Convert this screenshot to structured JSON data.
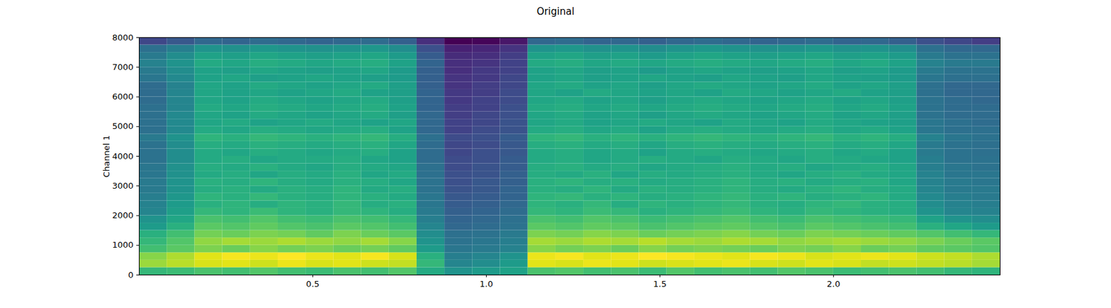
{
  "chart_data": {
    "type": "heatmap",
    "title": "Original",
    "y_label": "Channel 1",
    "xlim": [
      0,
      2.48
    ],
    "ylim": [
      0,
      8000
    ],
    "xticks": [
      0.5,
      {
        "value": 1,
        "label": "1.0"
      },
      1.5,
      {
        "value": 2,
        "label": "2.0"
      }
    ],
    "yticks": [
      0,
      1000,
      2000,
      3000,
      4000,
      5000,
      6000,
      7000,
      8000
    ],
    "x_bins": [
      0,
      0.08,
      0.16,
      0.24,
      0.32,
      0.4,
      0.48,
      0.56,
      0.64,
      0.72,
      0.8,
      0.88,
      0.96,
      1.04,
      1.12,
      1.2,
      1.28,
      1.36,
      1.44,
      1.52,
      1.6,
      1.68,
      1.76,
      1.84,
      1.92,
      2,
      2.08,
      2.16,
      2.24,
      2.32,
      2.4,
      2.48
    ],
    "y_bins": [
      0,
      250,
      500,
      750,
      1000,
      1250,
      1500,
      1750,
      2000,
      2250,
      2500,
      2750,
      3000,
      3250,
      3500,
      3750,
      4000,
      4250,
      4500,
      4750,
      5000,
      5250,
      5500,
      5750,
      6000,
      6250,
      6500,
      6750,
      7000,
      7250,
      7500,
      7750,
      8000
    ],
    "cells": [
      [
        -40,
        -39,
        -37,
        -38,
        -36,
        -38,
        -39,
        -37,
        -38,
        -36,
        -44,
        -50,
        -48,
        -46,
        -37,
        -36,
        -38,
        -37,
        -39,
        -36,
        -38,
        -37,
        -38,
        -36,
        -37,
        -39,
        -38,
        -37,
        -38,
        -40,
        -41
      ],
      [
        -28,
        -25,
        -22,
        -21,
        -23,
        -20,
        -22,
        -21,
        -23,
        -24,
        -40,
        -54,
        -52,
        -48,
        -21,
        -22,
        -20,
        -21,
        -23,
        -22,
        -21,
        -20,
        -22,
        -23,
        -21,
        -22,
        -24,
        -23,
        -24,
        -25,
        -27
      ],
      [
        -30,
        -26,
        -21,
        -19,
        -20,
        -18,
        -20,
        -21,
        -19,
        -22,
        -42,
        -56,
        -54,
        -50,
        -20,
        -19,
        -21,
        -20,
        -18,
        -19,
        -20,
        -21,
        -19,
        -20,
        -22,
        -21,
        -20,
        -21,
        -23,
        -24,
        -26
      ],
      [
        -38,
        -35,
        -31,
        -33,
        -30,
        -32,
        -31,
        -33,
        -32,
        -34,
        -48,
        -58,
        -57,
        -55,
        -30,
        -32,
        -31,
        -33,
        -30,
        -32,
        -31,
        -32,
        -33,
        -31,
        -32,
        -30,
        -33,
        -32,
        -34,
        -35,
        -36
      ],
      [
        -40,
        -36,
        -29,
        -27,
        -28,
        -26,
        -28,
        -29,
        -27,
        -30,
        -50,
        -59,
        -58,
        -56,
        -27,
        -28,
        -26,
        -27,
        -25,
        -27,
        -28,
        -26,
        -27,
        -29,
        -28,
        -27,
        -28,
        -29,
        -31,
        -33,
        -35
      ],
      [
        -42,
        -38,
        -32,
        -33,
        -31,
        -32,
        -34,
        -31,
        -33,
        -35,
        -52,
        -60,
        -59,
        -57,
        -31,
        -32,
        -30,
        -31,
        -33,
        -32,
        -31,
        -30,
        -32,
        -33,
        -31,
        -32,
        -33,
        -34,
        -36,
        -38,
        -40
      ],
      [
        -48,
        -42,
        -35,
        -36,
        -34,
        -36,
        -37,
        -35,
        -36,
        -38,
        -54,
        -62,
        -61,
        -59,
        -35,
        -36,
        -34,
        -35,
        -37,
        -36,
        -35,
        -34,
        -36,
        -37,
        -35,
        -36,
        -37,
        -38,
        -42,
        -45,
        -48
      ],
      [
        -50,
        -45,
        -37,
        -38,
        -36,
        -38,
        -39,
        -37,
        -38,
        -40,
        -56,
        -63,
        -62,
        -60,
        -37,
        -38,
        -36,
        -37,
        -39,
        -38,
        -37,
        -36,
        -38,
        -39,
        -37,
        -38,
        -39,
        -40,
        -46,
        -50,
        -52
      ],
      [
        -54,
        -47,
        -40,
        -41,
        -39,
        -41,
        -42,
        -40,
        -41,
        -43,
        -57,
        -64,
        -63,
        -61,
        -40,
        -41,
        -39,
        -40,
        -42,
        -41,
        -40,
        -39,
        -41,
        -42,
        -40,
        -41,
        -42,
        -43,
        -50,
        -54,
        -55
      ],
      [
        -55,
        -48,
        -42,
        -41,
        -43,
        -41,
        -42,
        -40,
        -43,
        -42,
        -58,
        -65,
        -64,
        -62,
        -41,
        -42,
        -40,
        -43,
        -41,
        -42,
        -41,
        -40,
        -42,
        -43,
        -41,
        -40,
        -42,
        -43,
        -52,
        -55,
        -56
      ],
      [
        -56,
        -49,
        -41,
        -42,
        -40,
        -42,
        -43,
        -41,
        -42,
        -44,
        -58,
        -66,
        -65,
        -63,
        -41,
        -40,
        -42,
        -41,
        -43,
        -42,
        -41,
        -40,
        -42,
        -41,
        -43,
        -42,
        -41,
        -44,
        -53,
        -56,
        -57
      ],
      [
        -57,
        -50,
        -43,
        -42,
        -44,
        -42,
        -43,
        -41,
        -44,
        -43,
        -59,
        -67,
        -66,
        -63,
        -42,
        -43,
        -41,
        -44,
        -42,
        -43,
        -42,
        -41,
        -43,
        -44,
        -42,
        -41,
        -43,
        -44,
        -54,
        -57,
        -57
      ],
      [
        -57,
        -50,
        -42,
        -43,
        -41,
        -43,
        -44,
        -42,
        -43,
        -45,
        -59,
        -68,
        -66,
        -64,
        -42,
        -41,
        -43,
        -42,
        -44,
        -43,
        -42,
        -41,
        -43,
        -42,
        -44,
        -43,
        -42,
        -45,
        -55,
        -57,
        -58
      ],
      [
        -58,
        -51,
        -44,
        -43,
        -45,
        -43,
        -44,
        -42,
        -45,
        -44,
        -60,
        -68,
        -67,
        -64,
        -43,
        -44,
        -42,
        -45,
        -43,
        -44,
        -43,
        -42,
        -44,
        -45,
        -43,
        -42,
        -44,
        -45,
        -55,
        -58,
        -58
      ],
      [
        -58,
        -51,
        -43,
        -44,
        -42,
        -44,
        -45,
        -43,
        -44,
        -45,
        -60,
        -69,
        -67,
        -65,
        -43,
        -42,
        -44,
        -43,
        -45,
        -44,
        -43,
        -42,
        -44,
        -43,
        -45,
        -44,
        -43,
        -45,
        -56,
        -58,
        -59
      ],
      [
        -59,
        -52,
        -44,
        -43,
        -45,
        -44,
        -44,
        -43,
        -45,
        -46,
        -61,
        -69,
        -68,
        -65,
        -44,
        -43,
        -45,
        -44,
        -43,
        -44,
        -45,
        -43,
        -44,
        -45,
        -43,
        -44,
        -45,
        -46,
        -56,
        -59,
        -59
      ],
      [
        -59,
        -52,
        -44,
        -45,
        -43,
        -44,
        -45,
        -44,
        -43,
        -46,
        -61,
        -70,
        -68,
        -66,
        -44,
        -43,
        -45,
        -44,
        -46,
        -44,
        -43,
        -44,
        -45,
        -44,
        -43,
        -45,
        -44,
        -46,
        -57,
        -59,
        -60
      ],
      [
        -59,
        -52,
        -43,
        -44,
        -42,
        -43,
        -44,
        -43,
        -42,
        -45,
        -61,
        -70,
        -69,
        -66,
        -43,
        -42,
        -44,
        -43,
        -45,
        -43,
        -42,
        -43,
        -44,
        -43,
        -42,
        -44,
        -43,
        -45,
        -57,
        -59,
        -60
      ],
      [
        -57,
        -50,
        -41,
        -42,
        -40,
        -41,
        -42,
        -41,
        -40,
        -43,
        -60,
        -69,
        -68,
        -65,
        -41,
        -40,
        -42,
        -41,
        -42,
        -41,
        -40,
        -41,
        -42,
        -41,
        -40,
        -42,
        -41,
        -43,
        -55,
        -58,
        -59
      ],
      [
        -60,
        -53,
        -44,
        -45,
        -43,
        -44,
        -45,
        -44,
        -43,
        -46,
        -62,
        -71,
        -69,
        -67,
        -44,
        -43,
        -45,
        -44,
        -46,
        -44,
        -43,
        -44,
        -45,
        -44,
        -43,
        -45,
        -44,
        -46,
        -58,
        -60,
        -60
      ],
      [
        -60,
        -53,
        -45,
        -44,
        -46,
        -45,
        -44,
        -45,
        -46,
        -45,
        -62,
        -71,
        -70,
        -67,
        -45,
        -44,
        -46,
        -45,
        -44,
        -45,
        -46,
        -44,
        -45,
        -46,
        -44,
        -45,
        -46,
        -47,
        -58,
        -60,
        -61
      ],
      [
        -60,
        -53,
        -45,
        -46,
        -44,
        -45,
        -46,
        -45,
        -44,
        -47,
        -62,
        -72,
        -70,
        -68,
        -45,
        -44,
        -46,
        -45,
        -47,
        -45,
        -44,
        -45,
        -46,
        -45,
        -44,
        -46,
        -45,
        -47,
        -59,
        -61,
        -61
      ],
      [
        -60,
        -54,
        -44,
        -45,
        -43,
        -44,
        -45,
        -44,
        -43,
        -46,
        -63,
        -72,
        -71,
        -68,
        -44,
        -43,
        -45,
        -44,
        -45,
        -44,
        -43,
        -44,
        -45,
        -44,
        -43,
        -45,
        -44,
        -46,
        -59,
        -61,
        -61
      ],
      [
        -61,
        -54,
        -45,
        -46,
        -44,
        -45,
        -46,
        -45,
        -44,
        -47,
        -63,
        -73,
        -71,
        -69,
        -45,
        -44,
        -46,
        -45,
        -47,
        -45,
        -44,
        -45,
        -46,
        -45,
        -44,
        -46,
        -45,
        -47,
        -59,
        -61,
        -62
      ],
      [
        -61,
        -54,
        -45,
        -46,
        -45,
        -46,
        -45,
        -44,
        -46,
        -47,
        -63,
        -73,
        -72,
        -69,
        -45,
        -46,
        -44,
        -45,
        -46,
        -45,
        -46,
        -44,
        -45,
        -46,
        -45,
        -44,
        -46,
        -47,
        -60,
        -62,
        -62
      ],
      [
        -61,
        -55,
        -45,
        -46,
        -44,
        -45,
        -46,
        -45,
        -44,
        -47,
        -64,
        -74,
        -72,
        -70,
        -45,
        -44,
        -46,
        -45,
        -47,
        -45,
        -44,
        -45,
        -46,
        -45,
        -44,
        -46,
        -45,
        -47,
        -60,
        -62,
        -62
      ],
      [
        -58,
        -53,
        -46,
        -45,
        -47,
        -46,
        -45,
        -46,
        -47,
        -48,
        -64,
        -74,
        -73,
        -70,
        -46,
        -45,
        -47,
        -46,
        -45,
        -46,
        -47,
        -45,
        -46,
        -47,
        -45,
        -46,
        -47,
        -48,
        -58,
        -60,
        -60
      ],
      [
        -57,
        -52,
        -46,
        -47,
        -45,
        -46,
        -47,
        -46,
        -45,
        -48,
        -64,
        -75,
        -73,
        -71,
        -46,
        -45,
        -47,
        -46,
        -48,
        -46,
        -45,
        -46,
        -47,
        -46,
        -45,
        -47,
        -46,
        -48,
        -57,
        -59,
        -59
      ],
      [
        -55,
        -50,
        -44,
        -45,
        -43,
        -44,
        -45,
        -44,
        -43,
        -46,
        -63,
        -75,
        -74,
        -71,
        -44,
        -43,
        -45,
        -44,
        -45,
        -44,
        -43,
        -44,
        -45,
        -44,
        -43,
        -45,
        -44,
        -46,
        -55,
        -57,
        -57
      ],
      [
        -57,
        -52,
        -46,
        -47,
        -45,
        -46,
        -47,
        -46,
        -45,
        -48,
        -65,
        -76,
        -75,
        -72,
        -46,
        -45,
        -47,
        -46,
        -48,
        -46,
        -45,
        -46,
        -47,
        -46,
        -45,
        -47,
        -46,
        -48,
        -57,
        -59,
        -59
      ],
      [
        -60,
        -56,
        -50,
        -51,
        -49,
        -50,
        -51,
        -50,
        -49,
        -52,
        -68,
        -78,
        -77,
        -74,
        -50,
        -49,
        -51,
        -50,
        -52,
        -50,
        -49,
        -50,
        -51,
        -50,
        -49,
        -51,
        -50,
        -52,
        -60,
        -62,
        -62
      ],
      [
        -70,
        -66,
        -62,
        -63,
        -61,
        -62,
        -63,
        -62,
        -61,
        -64,
        -75,
        -84,
        -83,
        -80,
        -62,
        -61,
        -63,
        -62,
        -64,
        -62,
        -61,
        -62,
        -63,
        -62,
        -61,
        -63,
        -62,
        -64,
        -68,
        -70,
        -72
      ]
    ]
  }
}
